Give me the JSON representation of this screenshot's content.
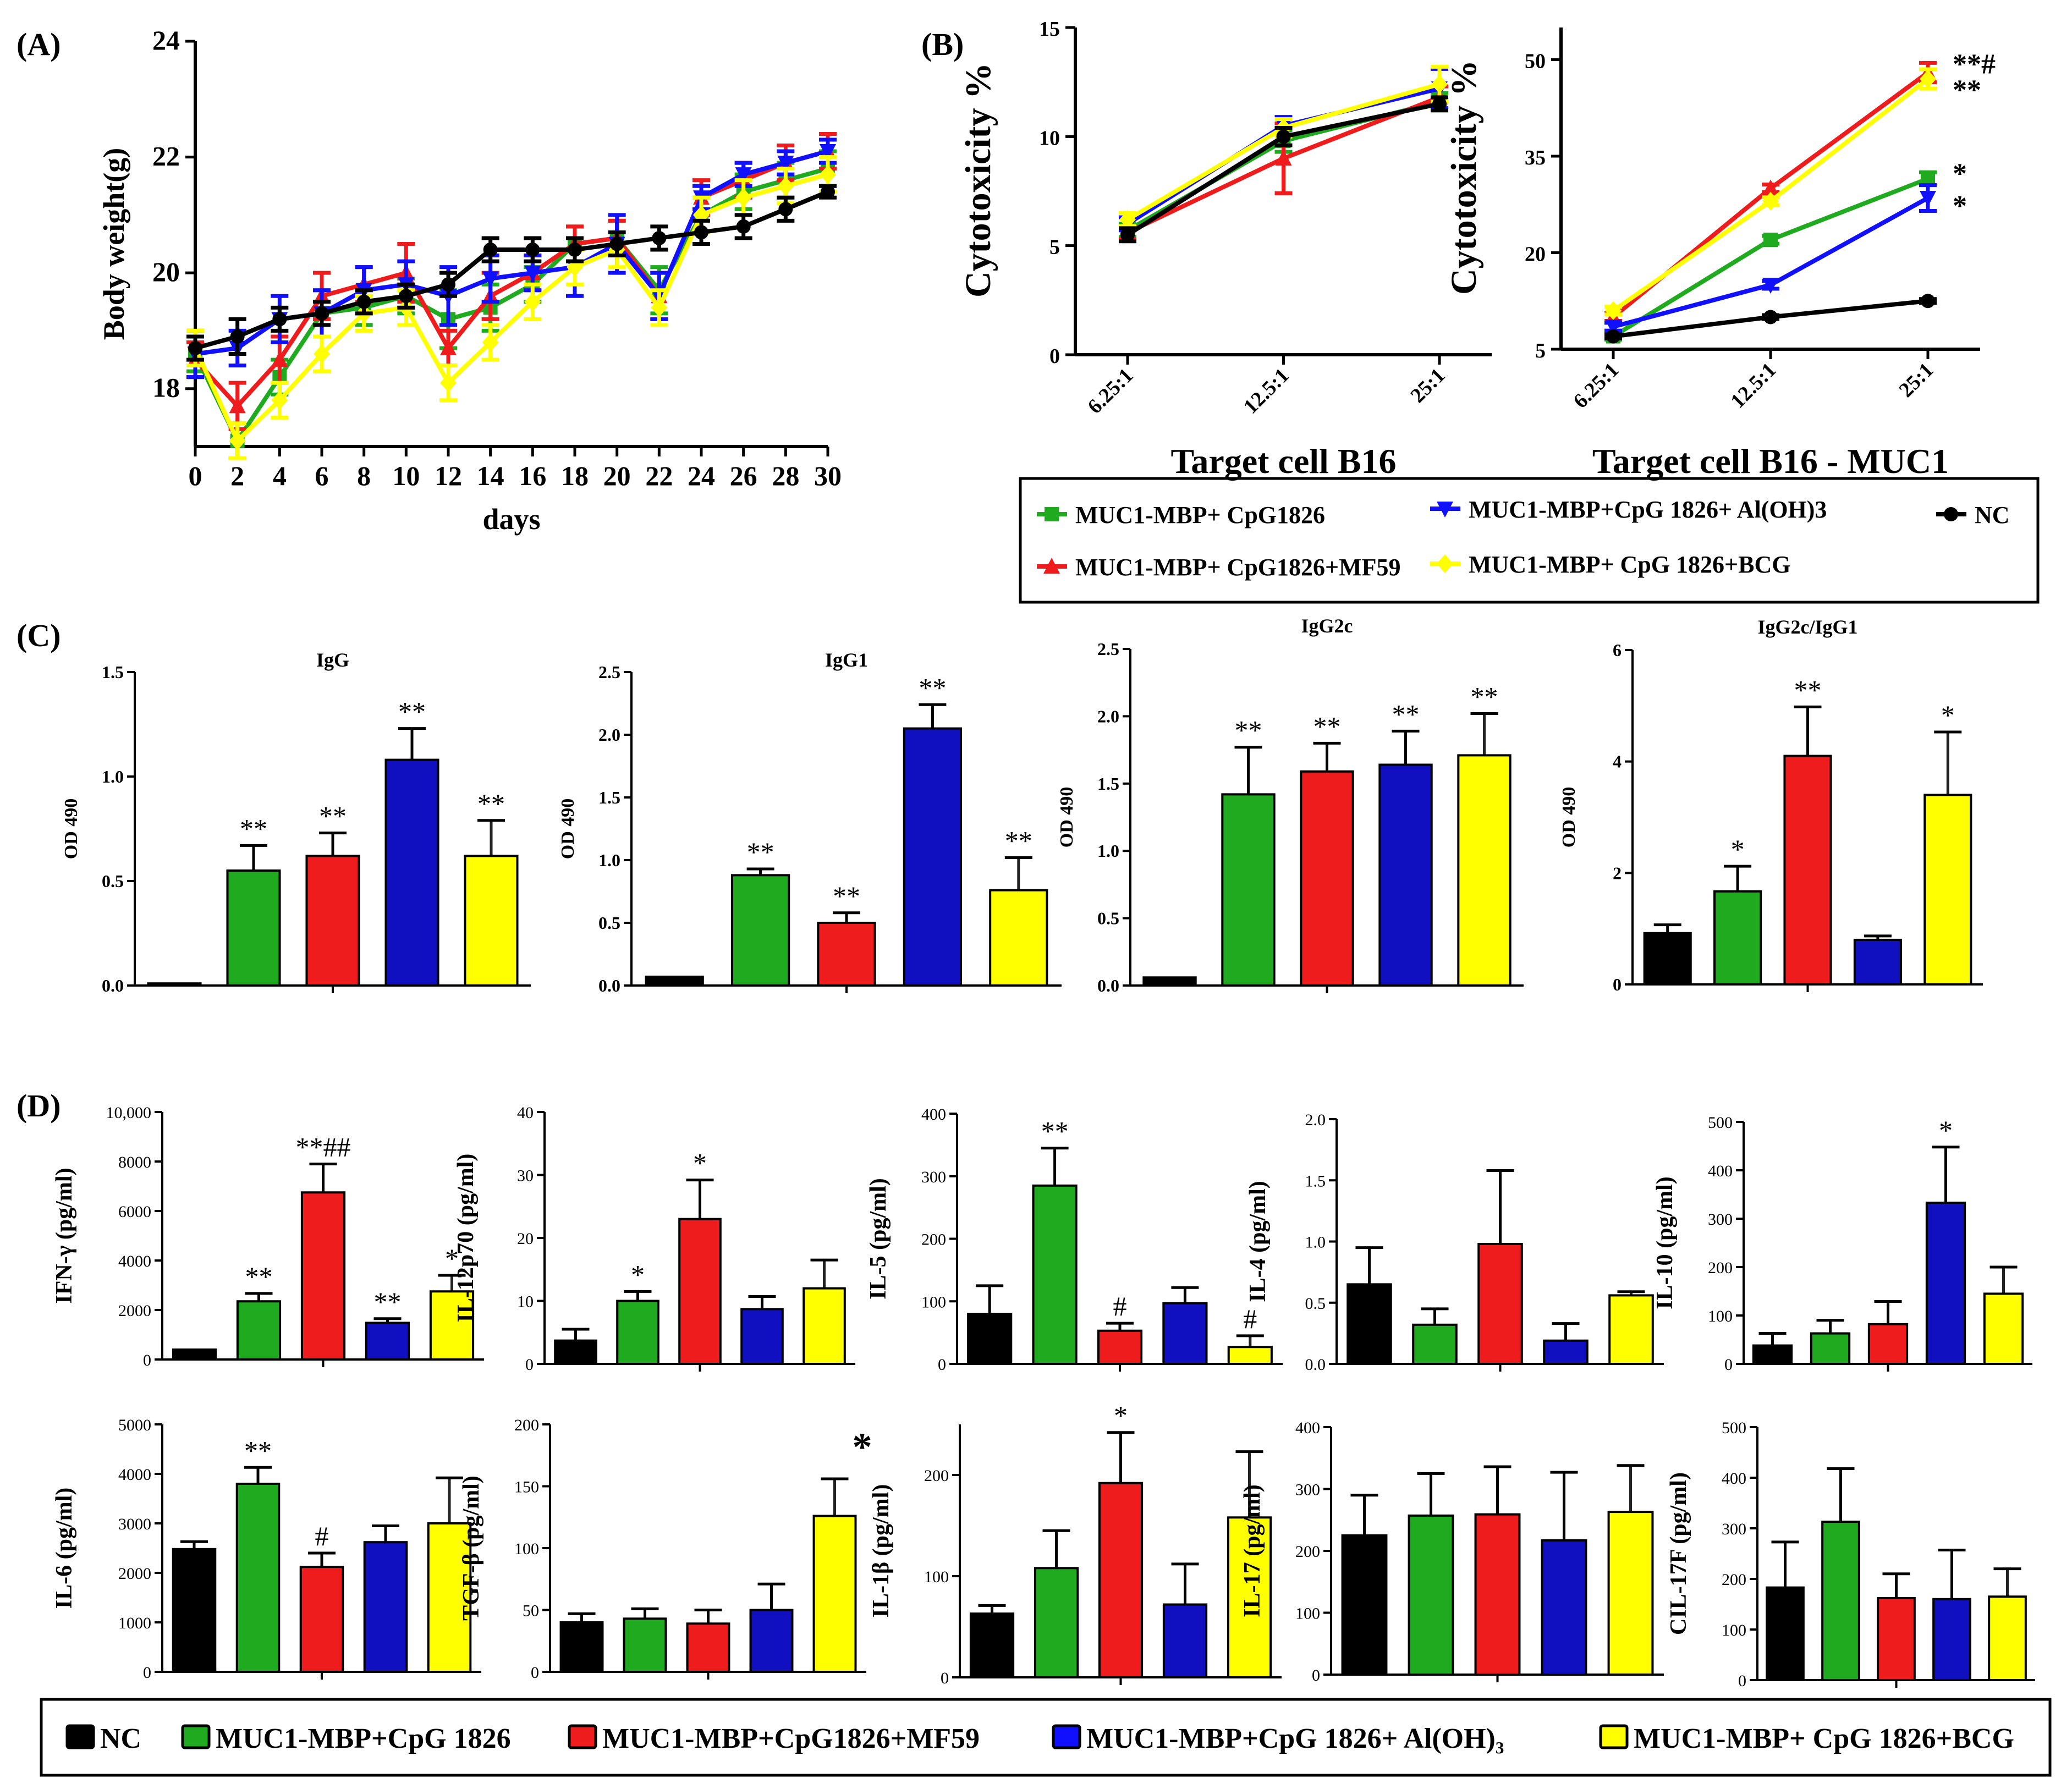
{
  "colors": {
    "NC": "#000000",
    "CpG": "#1faa1f",
    "MF59": "#ee1c1c",
    "AlOH": "#1010c0",
    "BCG": "#ffff00"
  },
  "legend_b": {
    "items": [
      {
        "label": "MUC1-MBP+ CpG1826",
        "color": "#1faa1f",
        "marker": "square"
      },
      {
        "label": "MUC1-MBP+CpG 1826+ Al(OH)3",
        "color": "#1010ff",
        "marker": "tri-down"
      },
      {
        "label": "NC",
        "color": "#000000",
        "marker": "circle"
      },
      {
        "label": "MUC1-MBP+ CpG1826+MF59",
        "color": "#ee1c1c",
        "marker": "tri-up"
      },
      {
        "label": "MUC1-MBP+ CpG 1826+BCG",
        "color": "#ffff00",
        "marker": "diamond"
      }
    ]
  },
  "legend_d": {
    "items": [
      {
        "label": "NC",
        "color": "#000000"
      },
      {
        "label": "MUC1-MBP+CpG 1826",
        "color": "#1faa1f"
      },
      {
        "label": "MUC1-MBP+CpG1826+MF59",
        "color": "#ee1c1c"
      },
      {
        "label": "MUC1-MBP+CpG 1826+ Al(OH)₃",
        "color": "#1010ff"
      },
      {
        "label": "MUC1-MBP+ CpG 1826+BCG",
        "color": "#ffff00"
      }
    ]
  },
  "chart_data": [
    {
      "id": "A",
      "panel_label": "(A)",
      "type": "line",
      "xlabel": "days",
      "ylabel": "Body weight(g)",
      "xlim": [
        0,
        30
      ],
      "ylim": [
        17,
        24
      ],
      "xticks": [
        0,
        2,
        4,
        6,
        8,
        10,
        12,
        14,
        16,
        18,
        20,
        22,
        24,
        26,
        28,
        30
      ],
      "yticks": [
        18,
        20,
        22,
        24
      ],
      "series": [
        {
          "name": "MUC1-MBP+ CpG1826",
          "color": "#1faa1f",
          "marker": "square",
          "x": [
            0,
            2,
            4,
            6,
            8,
            10,
            12,
            14,
            16,
            18,
            20,
            22,
            24,
            26,
            28,
            30
          ],
          "y": [
            18.6,
            17.1,
            18.2,
            19.3,
            19.4,
            19.6,
            19.2,
            19.4,
            19.8,
            20.5,
            20.6,
            19.7,
            21.0,
            21.4,
            21.6,
            21.8
          ],
          "err": [
            0.3,
            0.3,
            0.3,
            0.4,
            0.3,
            0.3,
            0.5,
            0.4,
            0.3,
            0.3,
            0.3,
            0.4,
            0.3,
            0.3,
            0.3,
            0.3
          ]
        },
        {
          "name": "MUC1-MBP+ CpG1826+MF59",
          "color": "#ee1c1c",
          "marker": "tri-up",
          "x": [
            0,
            2,
            4,
            6,
            8,
            10,
            12,
            14,
            16,
            18,
            20,
            22,
            24,
            26,
            28,
            30
          ],
          "y": [
            18.5,
            17.7,
            18.5,
            19.6,
            19.8,
            20.0,
            18.7,
            19.6,
            20.0,
            20.5,
            20.6,
            19.6,
            21.3,
            21.6,
            21.9,
            22.1
          ],
          "err": [
            0.3,
            0.4,
            0.4,
            0.4,
            0.3,
            0.5,
            0.3,
            0.4,
            0.3,
            0.3,
            0.3,
            0.4,
            0.3,
            0.3,
            0.3,
            0.3
          ]
        },
        {
          "name": "MUC1-MBP+CpG 1826+ Al(OH)3",
          "color": "#1010ff",
          "marker": "tri-down",
          "x": [
            0,
            2,
            4,
            6,
            8,
            10,
            12,
            14,
            16,
            18,
            20,
            22,
            24,
            26,
            28,
            30
          ],
          "y": [
            18.6,
            18.7,
            19.2,
            19.3,
            19.7,
            19.8,
            19.6,
            19.9,
            20.0,
            20.1,
            20.5,
            19.6,
            21.3,
            21.7,
            21.9,
            22.1
          ],
          "err": [
            0.4,
            0.3,
            0.4,
            0.4,
            0.4,
            0.4,
            0.5,
            0.4,
            0.3,
            0.5,
            0.5,
            0.4,
            0.2,
            0.2,
            0.2,
            0.2
          ]
        },
        {
          "name": "MUC1-MBP+ CpG 1826+BCG",
          "color": "#ffff00",
          "marker": "diamond",
          "x": [
            0,
            2,
            4,
            6,
            8,
            10,
            12,
            14,
            16,
            18,
            20,
            22,
            24,
            26,
            28,
            30
          ],
          "y": [
            18.7,
            17.1,
            17.8,
            18.6,
            19.3,
            19.4,
            18.1,
            18.8,
            19.5,
            20.1,
            20.4,
            19.4,
            21.0,
            21.3,
            21.5,
            21.7
          ],
          "err": [
            0.3,
            0.3,
            0.3,
            0.3,
            0.3,
            0.3,
            0.3,
            0.3,
            0.3,
            0.3,
            0.3,
            0.3,
            0.3,
            0.3,
            0.3,
            0.3
          ]
        },
        {
          "name": "NC",
          "color": "#000000",
          "marker": "circle",
          "x": [
            0,
            2,
            4,
            6,
            8,
            10,
            12,
            14,
            16,
            18,
            20,
            22,
            24,
            26,
            28,
            30
          ],
          "y": [
            18.7,
            18.9,
            19.2,
            19.3,
            19.5,
            19.6,
            19.8,
            20.4,
            20.4,
            20.4,
            20.5,
            20.6,
            20.7,
            20.8,
            21.1,
            21.4
          ],
          "err": [
            0.2,
            0.3,
            0.2,
            0.2,
            0.2,
            0.2,
            0.2,
            0.2,
            0.2,
            0.2,
            0.2,
            0.2,
            0.2,
            0.2,
            0.2,
            0.1
          ]
        }
      ]
    },
    {
      "id": "B1",
      "panel_label": "(B)",
      "type": "line",
      "xlabel": "Target cell B16",
      "ylabel": "Cytotoxicity  %",
      "categories": [
        "6.25:1",
        "12.5:1",
        "25:1"
      ],
      "ylim": [
        0,
        15
      ],
      "yticks": [
        0,
        5,
        10,
        15
      ],
      "series": [
        {
          "name": "MUC1-MBP+ CpG1826",
          "color": "#1faa1f",
          "marker": "square",
          "values": [
            5.7,
            9.8,
            11.6
          ],
          "err": [
            0.3,
            0.5,
            0.4
          ]
        },
        {
          "name": "MUC1-MBP+ CpG1826+MF59",
          "color": "#ee1c1c",
          "marker": "tri-up",
          "values": [
            5.6,
            9.0,
            11.8
          ],
          "err": [
            0.3,
            1.6,
            0.5
          ]
        },
        {
          "name": "MUC1-MBP+CpG 1826+ Al(OH)3",
          "color": "#1010ff",
          "marker": "tri-down",
          "values": [
            6.0,
            10.5,
            12.2
          ],
          "err": [
            0.3,
            0.4,
            0.9
          ]
        },
        {
          "name": "MUC1-MBP+ CpG 1826+BCG",
          "color": "#ffff00",
          "marker": "diamond",
          "values": [
            6.2,
            10.4,
            12.4
          ],
          "err": [
            0.3,
            0.4,
            0.8
          ]
        },
        {
          "name": "NC",
          "color": "#000000",
          "marker": "circle",
          "values": [
            5.5,
            10.0,
            11.5
          ],
          "err": [
            0.3,
            0.4,
            0.3
          ]
        }
      ]
    },
    {
      "id": "B2",
      "type": "line",
      "xlabel": "Target cell B16 - MUC1",
      "ylabel": "Cytotoxicity  %",
      "categories": [
        "6.25:1",
        "12.5:1",
        "25:1"
      ],
      "ylim": [
        5,
        55
      ],
      "yticks": [
        5,
        20,
        35,
        50
      ],
      "annotations": [
        {
          "text": "**#",
          "x": "25:1",
          "y": 50
        },
        {
          "text": "**",
          "x": "25:1",
          "y": 46
        },
        {
          "text": "*",
          "x": "25:1",
          "y": 33
        },
        {
          "text": "*",
          "x": "25:1",
          "y": 28
        }
      ],
      "series": [
        {
          "name": "MUC1-MBP+ CpG1826",
          "color": "#1faa1f",
          "marker": "square",
          "values": [
            7,
            22,
            31.5
          ],
          "err": [
            0.5,
            0.6,
            1.0
          ]
        },
        {
          "name": "MUC1-MBP+ CpG1826+MF59",
          "color": "#ee1c1c",
          "marker": "tri-up",
          "values": [
            10,
            30,
            48
          ],
          "err": [
            0.6,
            0.6,
            1.5
          ]
        },
        {
          "name": "MUC1-MBP+CpG 1826+ Al(OH)3",
          "color": "#1010ff",
          "marker": "tri-down",
          "values": [
            8.5,
            15,
            28.5
          ],
          "err": [
            0.6,
            0.6,
            2.0
          ]
        },
        {
          "name": "MUC1-MBP+ CpG 1826+BCG",
          "color": "#ffff00",
          "marker": "diamond",
          "values": [
            11,
            28,
            47
          ],
          "err": [
            0.6,
            0.6,
            1.5
          ]
        },
        {
          "name": "NC",
          "color": "#000000",
          "marker": "circle",
          "values": [
            7,
            10,
            12.5
          ],
          "err": [
            0.3,
            0.3,
            0.3
          ]
        }
      ]
    },
    {
      "id": "C1",
      "panel_label": "(C)",
      "type": "bar",
      "title": "IgG",
      "ylabel": "OD 490",
      "ylim": [
        0,
        1.5
      ],
      "yticks": [
        "0.0",
        "0.5",
        "1.0",
        "1.5"
      ],
      "values": [
        0.01,
        0.55,
        0.62,
        1.08,
        0.62
      ],
      "err": [
        0,
        0.12,
        0.11,
        0.15,
        0.17
      ],
      "annotations": [
        "",
        "**",
        "**",
        "**",
        "**"
      ]
    },
    {
      "id": "C2",
      "type": "bar",
      "title": "IgG1",
      "ylabel": "OD 490",
      "ylim": [
        0,
        2.5
      ],
      "yticks": [
        "0.0",
        "0.5",
        "1.0",
        "1.5",
        "2.0",
        "2.5"
      ],
      "values": [
        0.07,
        0.88,
        0.5,
        2.05,
        0.76
      ],
      "err": [
        0,
        0.05,
        0.08,
        0.19,
        0.26
      ],
      "annotations": [
        "",
        "**",
        "**",
        "**",
        "**"
      ]
    },
    {
      "id": "C3",
      "type": "bar",
      "title": "IgG2c",
      "ylabel": "OD 490",
      "ylim": [
        0,
        2.5
      ],
      "yticks": [
        "0.0",
        "0.5",
        "1.0",
        "1.5",
        "2.0",
        "2.5"
      ],
      "values": [
        0.06,
        1.42,
        1.59,
        1.64,
        1.71
      ],
      "err": [
        0,
        0.35,
        0.21,
        0.25,
        0.31
      ],
      "annotations": [
        "",
        "**",
        "**",
        "**",
        "**"
      ]
    },
    {
      "id": "C4",
      "type": "bar",
      "title": "IgG2c/IgG1",
      "ylabel": "OD 490",
      "ylim": [
        0,
        6
      ],
      "yticks": [
        "0",
        "2",
        "4",
        "6"
      ],
      "values": [
        0.92,
        1.67,
        4.1,
        0.8,
        3.4
      ],
      "err": [
        0.15,
        0.45,
        0.88,
        0.07,
        1.13
      ],
      "annotations": [
        "",
        "*",
        "**",
        "",
        "*"
      ]
    },
    {
      "id": "D1",
      "panel_label": "(D)",
      "type": "bar",
      "ylabel": "IFN-γ  (pg/ml)",
      "ylim": [
        0,
        10000
      ],
      "yticks": [
        "0",
        "2000",
        "4000",
        "6000",
        "8000",
        "10,000"
      ],
      "values": [
        400,
        2350,
        6750,
        1480,
        2750
      ],
      "err": [
        0,
        320,
        1150,
        170,
        650
      ],
      "annotations": [
        "",
        "**",
        "**##",
        "**",
        "*"
      ]
    },
    {
      "id": "D2",
      "type": "bar",
      "ylabel": "IL-12p70 (pg/ml)",
      "ylim": [
        0,
        40
      ],
      "yticks": [
        "0",
        "10",
        "20",
        "30",
        "40"
      ],
      "values": [
        3.7,
        10.0,
        23.0,
        8.7,
        12.0
      ],
      "err": [
        1.8,
        1.5,
        6.2,
        2.0,
        4.5
      ],
      "annotations": [
        "",
        "*",
        "*",
        "",
        ""
      ]
    },
    {
      "id": "D3",
      "type": "bar",
      "ylabel": "IL-5  (pg/ml)",
      "ylim": [
        0,
        400
      ],
      "yticks": [
        "0",
        "100",
        "200",
        "300",
        "400"
      ],
      "values": [
        80,
        285,
        53,
        97,
        27
      ],
      "err": [
        45,
        60,
        12,
        25,
        18
      ],
      "annotations": [
        "",
        "**",
        "#",
        "",
        "#"
      ]
    },
    {
      "id": "D4",
      "type": "bar",
      "ylabel": "IL-4  (pg/ml)",
      "ylim": [
        0,
        2.0
      ],
      "yticks": [
        "0.0",
        "0.5",
        "1.0",
        "1.5",
        "2.0"
      ],
      "values": [
        0.65,
        0.32,
        0.98,
        0.19,
        0.56
      ],
      "err": [
        0.3,
        0.13,
        0.6,
        0.14,
        0.03
      ],
      "annotations": [
        "",
        "",
        "",
        "",
        ""
      ]
    },
    {
      "id": "D5",
      "type": "bar",
      "ylabel": "IL-10  (pg/ml)",
      "ylim": [
        0,
        500
      ],
      "yticks": [
        "0",
        "100",
        "200",
        "300",
        "400",
        "500"
      ],
      "values": [
        38,
        63,
        82,
        333,
        145
      ],
      "err": [
        25,
        27,
        47,
        115,
        55
      ],
      "annotations": [
        "",
        "",
        "",
        "*",
        ""
      ]
    },
    {
      "id": "D6",
      "type": "bar",
      "ylabel": "IL-6  (pg/ml)",
      "ylim": [
        0,
        5000
      ],
      "yticks": [
        "0",
        "1000",
        "2000",
        "3000",
        "4000",
        "5000"
      ],
      "values": [
        2480,
        3800,
        2120,
        2620,
        3000
      ],
      "err": [
        150,
        330,
        280,
        330,
        920
      ],
      "annotations": [
        "",
        "**",
        "#",
        "",
        ""
      ]
    },
    {
      "id": "D7",
      "type": "bar",
      "ylabel": "TGF-β  (pg/ml)",
      "ylim": [
        0,
        200
      ],
      "yticks": [
        "0",
        "50",
        "100",
        "150",
        "200"
      ],
      "values": [
        40,
        43,
        39,
        50,
        126
      ],
      "err": [
        7,
        8,
        11,
        21,
        30
      ],
      "annotations": [
        "",
        "",
        "",
        "",
        "*"
      ]
    },
    {
      "id": "D8",
      "type": "bar",
      "ylabel": "IL-1β  (pg/ml)",
      "ylim": [
        0,
        250
      ],
      "yticks": [
        "0",
        "100",
        "200"
      ],
      "values": [
        63,
        108,
        192,
        72,
        158
      ],
      "err": [
        8,
        37,
        50,
        40,
        65
      ],
      "annotations": [
        "",
        "",
        "*",
        "",
        ""
      ]
    },
    {
      "id": "D9",
      "type": "bar",
      "ylabel": "IL-17  (pg/ml)",
      "ylim": [
        0,
        400
      ],
      "yticks": [
        "0",
        "100",
        "200",
        "300",
        "400"
      ],
      "values": [
        225,
        257,
        259,
        217,
        263
      ],
      "err": [
        65,
        68,
        77,
        110,
        75
      ],
      "annotations": [
        "",
        "",
        "",
        "",
        ""
      ]
    },
    {
      "id": "D10",
      "type": "bar",
      "ylabel": "CIL-17F (pg/ml)",
      "ylim": [
        0,
        500
      ],
      "yticks": [
        "0",
        "100",
        "200",
        "300",
        "400",
        "500"
      ],
      "values": [
        183,
        313,
        162,
        160,
        165
      ],
      "err": [
        90,
        105,
        48,
        97,
        55
      ],
      "annotations": [
        "",
        "",
        "",
        "",
        ""
      ]
    }
  ]
}
